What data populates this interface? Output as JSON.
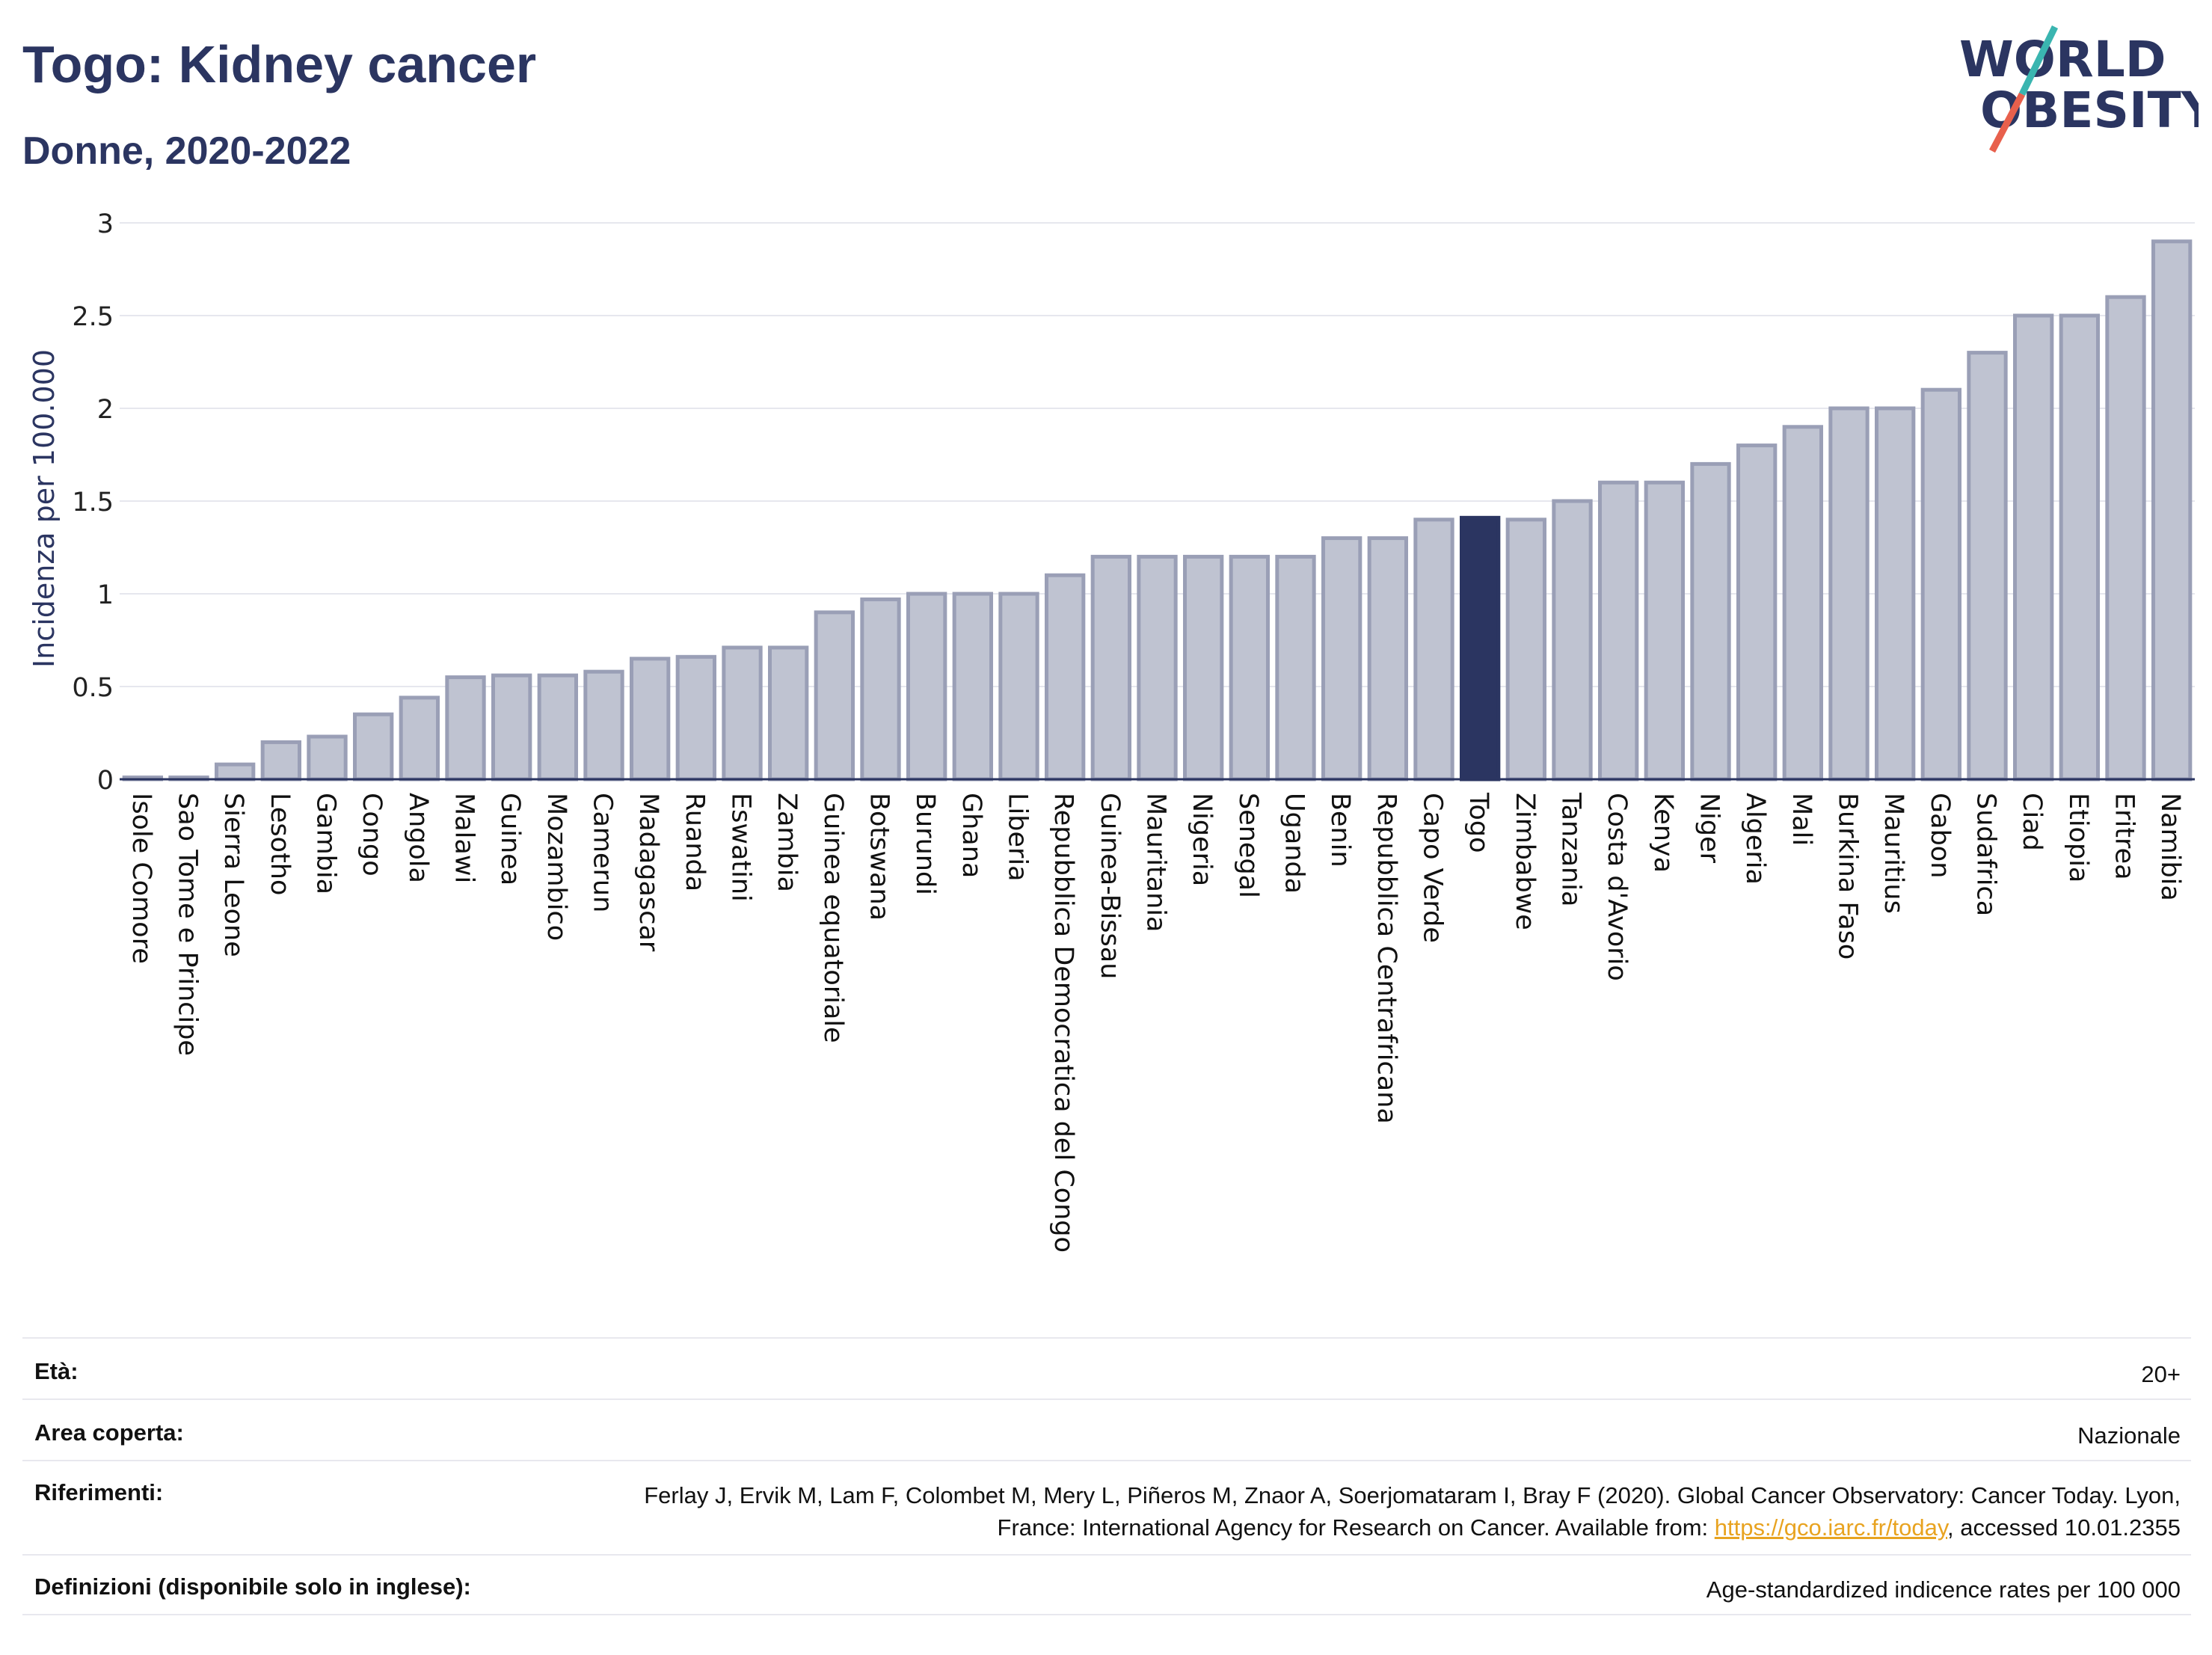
{
  "header": {
    "title": "Togo: Kidney cancer",
    "subtitle": "Donne, 2020-2022"
  },
  "logo": {
    "line1": "WORLD",
    "line2": "OBESITY",
    "colors": {
      "text": "#2b3561",
      "slash_teal": "#3ab5b0",
      "slash_red": "#e8604c"
    }
  },
  "chart_data": {
    "type": "bar",
    "ylabel": "Incidenza per 100.000",
    "xlabel": "",
    "ylim": [
      0,
      3
    ],
    "yticks": [
      0,
      0.5,
      1,
      1.5,
      2,
      2.5,
      3
    ],
    "ytick_labels": [
      "0",
      "0.5",
      "1",
      "1.5",
      "2",
      "2.5",
      "3"
    ],
    "grid": true,
    "highlight": "Togo",
    "colors": {
      "bar": "#bfc3d1",
      "bar_edge": "#9a9fb6",
      "highlight": "#2b3561"
    },
    "categories": [
      "Isole Comore",
      "Sao Tome e Principe",
      "Sierra Leone",
      "Lesotho",
      "Gambia",
      "Congo",
      "Angola",
      "Malawi",
      "Guinea",
      "Mozambico",
      "Camerun",
      "Madagascar",
      "Ruanda",
      "Eswatini",
      "Zambia",
      "Guinea equatoriale",
      "Botswana",
      "Burundi",
      "Ghana",
      "Liberia",
      "Repubblica Democratica del Congo",
      "Guinea-Bissau",
      "Mauritania",
      "Nigeria",
      "Senegal",
      "Uganda",
      "Benin",
      "Repubblica Centrafricana",
      "Capo Verde",
      "Togo",
      "Zimbabwe",
      "Tanzania",
      "Costa d'Avorio",
      "Kenya",
      "Niger",
      "Algeria",
      "Mali",
      "Burkina Faso",
      "Mauritius",
      "Gabon",
      "Sudafrica",
      "Ciad",
      "Etiopia",
      "Eritrea",
      "Namibia"
    ],
    "values": [
      0.01,
      0.01,
      0.08,
      0.2,
      0.23,
      0.35,
      0.44,
      0.55,
      0.56,
      0.56,
      0.58,
      0.65,
      0.66,
      0.71,
      0.71,
      0.9,
      0.97,
      1.0,
      1.0,
      1.0,
      1.1,
      1.2,
      1.2,
      1.2,
      1.2,
      1.2,
      1.3,
      1.3,
      1.4,
      1.41,
      1.4,
      1.5,
      1.6,
      1.6,
      1.7,
      1.8,
      1.9,
      2.0,
      2.0,
      2.1,
      2.3,
      2.5,
      2.5,
      2.6,
      2.9
    ]
  },
  "info": {
    "age_label": "Età:",
    "age_value": "20+",
    "area_label": "Area coperta:",
    "area_value": "Nazionale",
    "refs_label": "Riferimenti:",
    "refs_text_1": "Ferlay J, Ervik M, Lam F, Colombet M, Mery L, Piñeros M, Znaor A, Soerjomataram I, Bray F (2020). Global Cancer Observatory: Cancer Today. Lyon, France: International Agency for Research on Cancer. Available from: ",
    "refs_link": "https://gco.iarc.fr/today",
    "refs_text_2": ", accessed 10.01.2355",
    "defs_label": "Definizioni (disponibile solo in inglese):",
    "defs_value": "Age-standardized indicence rates per 100 000"
  }
}
